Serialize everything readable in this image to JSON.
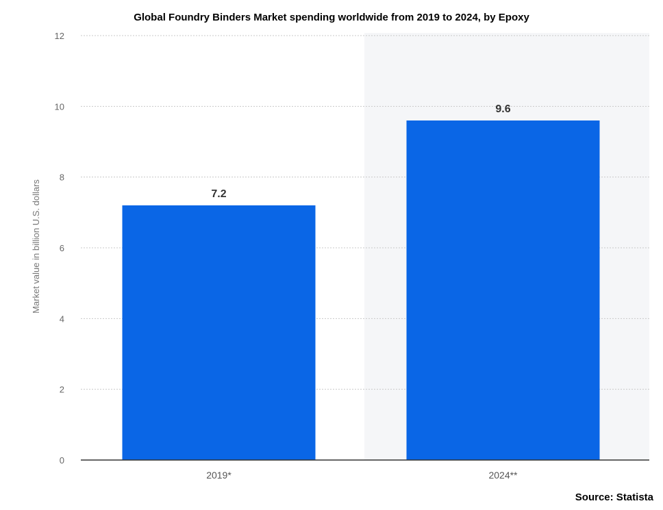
{
  "chart_data": {
    "type": "bar",
    "title": "Global Foundry Binders Market spending worldwide from 2019 to 2024, by Epoxy",
    "xlabel": "",
    "ylabel": "Market value in billion U.S. dollars",
    "categories": [
      "2019*",
      "2024**"
    ],
    "values": [
      7.2,
      9.6
    ],
    "value_labels": [
      "7.2",
      "9.6"
    ],
    "ylim": [
      0,
      12
    ],
    "yticks": [
      0,
      2,
      4,
      6,
      8,
      10,
      12
    ],
    "grid": true,
    "bar_color": "#0a66e6",
    "shaded_band_color": "#f5f6f8"
  },
  "source": "Source: Statista"
}
